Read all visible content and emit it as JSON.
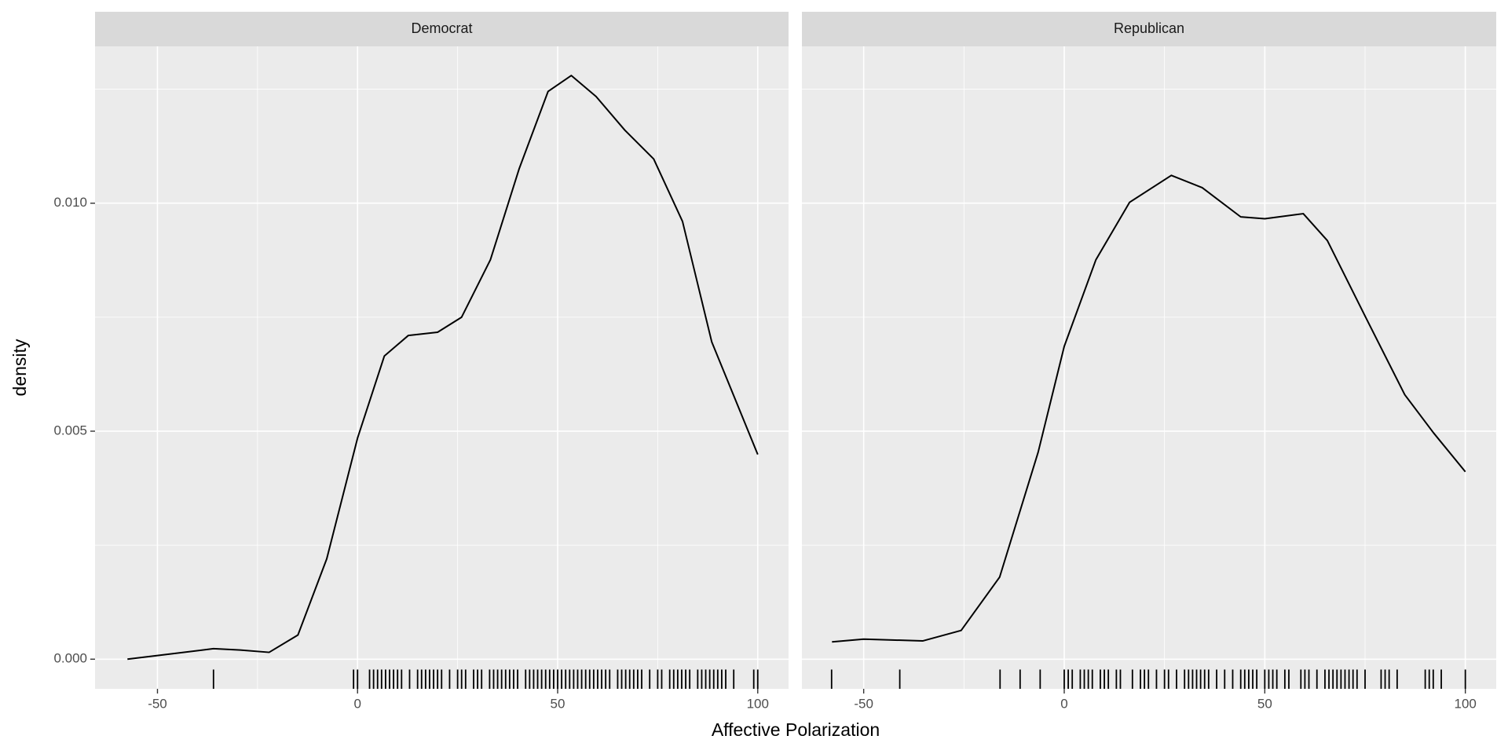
{
  "chart_data": [
    {
      "type": "line",
      "title": "Democrat",
      "color": "#000000",
      "x": [
        -57.5,
        -50,
        -36,
        -29.3,
        -22.1,
        -14.9,
        -7.7,
        0,
        6.7,
        12.7,
        20,
        26,
        33.2,
        40.4,
        47.6,
        53.4,
        59.6,
        66.8,
        74,
        81.2,
        88.5,
        100
      ],
      "values": [
        0,
        8e-05,
        0.00023,
        0.0002,
        0.00015,
        0.00053,
        0.0022,
        0.00485,
        0.00665,
        0.0071,
        0.00717,
        0.0075,
        0.00876,
        0.01076,
        0.01245,
        0.0128,
        0.01234,
        0.0116,
        0.01097,
        0.0096,
        0.00696,
        0.00449
      ],
      "rug": [
        -36,
        -1,
        0,
        3,
        4,
        5,
        6,
        7,
        8,
        9,
        10,
        11,
        13,
        15,
        16,
        17,
        18,
        19,
        20,
        21,
        23,
        25,
        26,
        27,
        29,
        30,
        31,
        33,
        34,
        35,
        36,
        37,
        38,
        39,
        40,
        42,
        43,
        44,
        45,
        46,
        47,
        48,
        49,
        50,
        51,
        52,
        53,
        54,
        55,
        56,
        57,
        58,
        59,
        60,
        61,
        62,
        63,
        65,
        66,
        67,
        68,
        69,
        70,
        71,
        73,
        75,
        76,
        78,
        79,
        80,
        81,
        82,
        83,
        85,
        86,
        87,
        88,
        89,
        90,
        91,
        92,
        94,
        99,
        100
      ],
      "xlim": [
        -65.6,
        107.7
      ],
      "xticks": [
        -50,
        0,
        50,
        100
      ],
      "x_minor_ticks": [
        -25,
        25,
        75
      ],
      "ylim": [
        -0.00065,
        0.01344
      ],
      "yticks": [
        {
          "value": 0,
          "label": "0.000"
        },
        {
          "value": 0.005,
          "label": "0.005"
        },
        {
          "value": 0.01,
          "label": "0.010"
        }
      ],
      "y_minor_ticks": [
        0.0025,
        0.0075,
        0.0125
      ],
      "grid": true
    },
    {
      "type": "line",
      "title": "Republican",
      "color": "#000000",
      "x": [
        -57.9,
        -50,
        -35.3,
        -25.7,
        -16.1,
        -6.5,
        0,
        7.9,
        16.3,
        26.7,
        34.4,
        44,
        50,
        59.6,
        65.6,
        75.2,
        84.9,
        92.1,
        100
      ],
      "values": [
        0.00038,
        0.00044,
        0.0004,
        0.00063,
        0.0018,
        0.00454,
        0.00686,
        0.00876,
        0.01002,
        0.01061,
        0.01034,
        0.0097,
        0.00966,
        0.00977,
        0.00918,
        0.00749,
        0.0058,
        0.00496,
        0.00411
      ],
      "rug": [
        -58,
        -41,
        -16,
        -11,
        -6,
        0,
        1,
        2,
        4,
        5,
        6,
        7,
        9,
        10,
        11,
        13,
        14,
        17,
        19,
        20,
        21,
        23,
        25,
        26,
        28,
        30,
        31,
        32,
        33,
        34,
        35,
        36,
        38,
        40,
        42,
        44,
        45,
        46,
        47,
        48,
        50,
        51,
        52,
        53,
        55,
        56,
        59,
        60,
        61,
        63,
        65,
        66,
        67,
        68,
        69,
        70,
        71,
        72,
        73,
        75,
        79,
        80,
        81,
        83,
        90,
        91,
        92,
        94,
        100
      ],
      "xlim": [
        -65.4,
        107.7
      ],
      "xticks": [
        -50,
        0,
        50,
        100
      ],
      "x_minor_ticks": [
        -25,
        25,
        75
      ],
      "grid": true
    }
  ],
  "x_label": "Affective Polarization",
  "y_label": "density"
}
